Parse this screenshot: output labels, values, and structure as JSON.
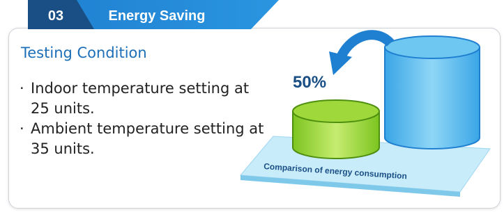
{
  "badge": {
    "number": "03",
    "title": "Energy Saving"
  },
  "section": {
    "heading": "Testing Condition",
    "bullets": [
      "Indoor temperature setting at 25 units.",
      "Ambient temperature setting at 35 units."
    ]
  },
  "figure": {
    "saving_label": "50%",
    "caption": "Comparison of energy consumption"
  }
}
